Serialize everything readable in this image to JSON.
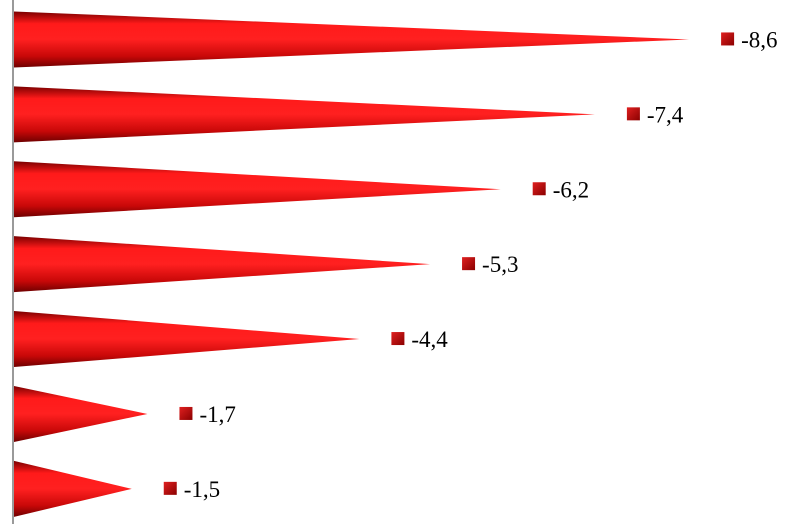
{
  "chart_data": {
    "type": "bar",
    "orientation": "horizontal",
    "bar_shape": "cone",
    "values": [
      -8.6,
      -7.4,
      -6.2,
      -5.3,
      -4.4,
      -1.7,
      -1.5
    ],
    "data_labels": [
      "-8,6",
      "-7,4",
      "-6,2",
      "-5,3",
      "-4,4",
      "-1,7",
      "-1,5"
    ],
    "title": "",
    "xlabel": "",
    "ylabel": "",
    "grid": false,
    "legend": "none",
    "axis_range": [
      0,
      -10
    ]
  },
  "colors": {
    "bar": "#e01010",
    "bar_dark": "#8a0000",
    "marker": "#c00000",
    "axis": "#9a9a9a"
  }
}
